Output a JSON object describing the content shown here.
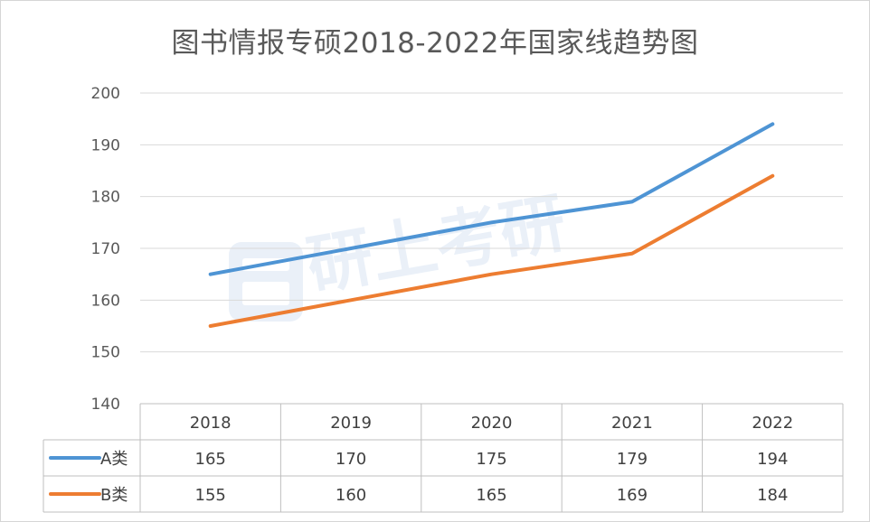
{
  "chart_data": {
    "type": "line",
    "title": "图书情报专硕2018-2022年国家线趋势图",
    "categories": [
      "2018",
      "2019",
      "2020",
      "2021",
      "2022"
    ],
    "series": [
      {
        "name": "A类",
        "values": [
          165,
          170,
          175,
          179,
          194
        ],
        "color": "#4e94d4"
      },
      {
        "name": "B类",
        "values": [
          155,
          160,
          165,
          169,
          184
        ],
        "color": "#ed7d31"
      }
    ],
    "yticks": [
      140,
      150,
      160,
      170,
      180,
      190,
      200
    ],
    "ylim": [
      140,
      200
    ],
    "grid": true,
    "data_table": true,
    "watermark": "研上考研"
  }
}
